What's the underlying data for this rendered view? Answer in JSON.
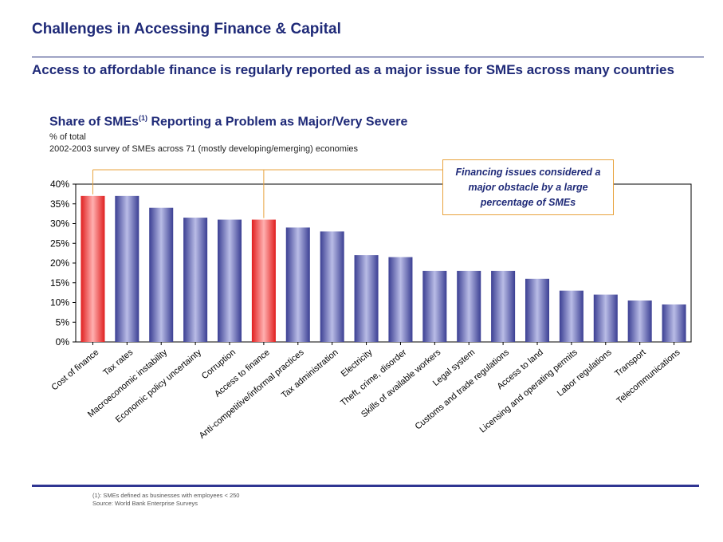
{
  "header": {
    "title": "Challenges in Accessing Finance & Capital",
    "subtitle": "Access to affordable finance is regularly reported as a major issue for SMEs across many countries"
  },
  "chart_header": {
    "title_prefix": "Share of SMEs",
    "title_sup": "(1)",
    "title_suffix": " Reporting a Problem as Major/Very Severe",
    "unit": "% of total",
    "note": "2002-2003  survey of SMEs across 71 (mostly developing/emerging) economies"
  },
  "callout": {
    "text": "Financing issues considered a major obstacle by a large percentage of SMEs"
  },
  "footnotes": {
    "definition": "(1): SMEs defined as businesses with employees < 250",
    "source": "Source: World Bank Enterprise Surveys"
  },
  "colors": {
    "title": "#1f2a78",
    "highlight_bar": "#ff3b3b",
    "normal_bar": "#6b70bf",
    "callout_border": "#e8a33d"
  },
  "chart_data": {
    "type": "bar",
    "categories": [
      "Cost of finance",
      "Tax rates",
      "Macroeconomic instability",
      "Economic policy uncertainty",
      "Corruption",
      "Access to finance",
      "Anti-competitive/informal practices",
      "Tax administration",
      "Electricity",
      "Theft, crime, disorder",
      "Skills of available workers",
      "Legal system",
      "Customs and trade regulations",
      "Access to land",
      "Licensing and operating permits",
      "Labor regulations",
      "Transport",
      "Telecommunications"
    ],
    "values": [
      37,
      37,
      34,
      31.5,
      31,
      31,
      29,
      28,
      22,
      21.5,
      18,
      18,
      18,
      16,
      13,
      12,
      10.5,
      9.5
    ],
    "highlight": [
      true,
      false,
      false,
      false,
      false,
      true,
      false,
      false,
      false,
      false,
      false,
      false,
      false,
      false,
      false,
      false,
      false,
      false
    ],
    "ylim": [
      0,
      40
    ],
    "yticks": [
      0,
      5,
      10,
      15,
      20,
      25,
      30,
      35,
      40
    ],
    "ytick_labels": [
      "0%",
      "5%",
      "10%",
      "15%",
      "20%",
      "25%",
      "30%",
      "35%",
      "40%"
    ],
    "grid": false,
    "xlabel": "",
    "ylabel": ""
  }
}
